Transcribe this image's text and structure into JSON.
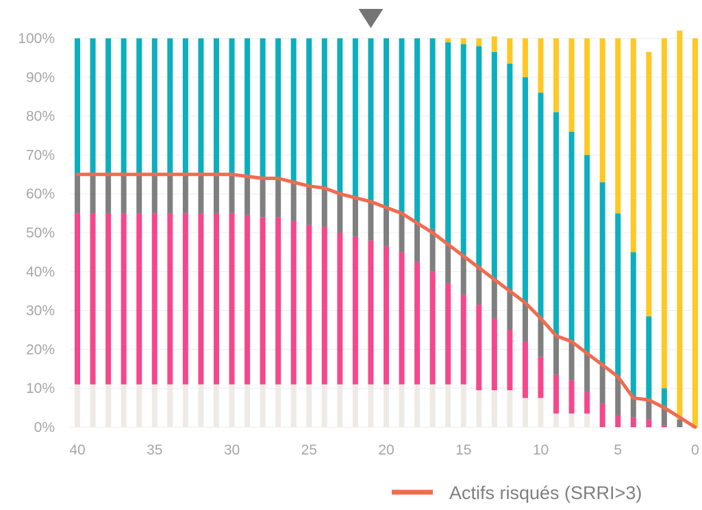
{
  "chart_data": {
    "type": "bar",
    "stacked": true,
    "x_direction": "descending",
    "x": [
      40,
      39,
      38,
      37,
      36,
      35,
      34,
      33,
      32,
      31,
      30,
      29,
      28,
      27,
      26,
      25,
      24,
      23,
      22,
      21,
      20,
      19,
      18,
      17,
      16,
      15,
      14,
      13,
      12,
      11,
      10,
      9,
      8,
      7,
      6,
      5,
      4,
      3,
      2,
      1,
      0
    ],
    "x_tick_labels": [
      "40",
      "35",
      "30",
      "25",
      "20",
      "15",
      "10",
      "5",
      "0"
    ],
    "y_tick_labels": [
      "0%",
      "10%",
      "20%",
      "30%",
      "40%",
      "50%",
      "60%",
      "70%",
      "80%",
      "90%",
      "100%"
    ],
    "ylim": [
      0,
      100
    ],
    "y_unit": "%",
    "grid": "horizontal",
    "legend_position": "bottom-right",
    "marker_above_x": 21,
    "series": [
      {
        "color": "#eeebe7",
        "values": [
          11,
          11,
          11,
          11,
          11,
          11,
          11,
          11,
          11,
          11,
          11,
          11,
          11,
          11,
          11,
          11,
          11,
          11,
          11,
          11,
          11,
          11,
          11,
          11,
          11,
          11,
          9.5,
          9.5,
          9.5,
          7.5,
          7.5,
          3.5,
          3.5,
          3.5,
          0,
          0,
          0,
          0,
          0,
          0,
          0
        ]
      },
      {
        "color": "#f5488c",
        "values": [
          44,
          44,
          44,
          44,
          44,
          44,
          44,
          44,
          44,
          44,
          44,
          43.5,
          43,
          43,
          42,
          41,
          40.5,
          39,
          38,
          37,
          35.5,
          34,
          31.5,
          29,
          26,
          23,
          22,
          18.5,
          15.5,
          14.5,
          10.5,
          10,
          8.5,
          5.5,
          6,
          3,
          2.5,
          2,
          0.5,
          0,
          0
        ]
      },
      {
        "color": "#7f7f7f",
        "values": [
          10,
          10,
          10,
          10,
          10,
          10,
          10,
          10,
          10,
          10,
          10,
          10,
          10,
          10,
          10,
          10,
          10,
          10,
          10,
          10,
          10,
          10,
          10,
          11,
          10,
          10,
          10,
          10,
          10,
          10,
          10,
          10,
          10,
          10,
          10,
          10,
          5,
          5,
          5,
          2,
          0
        ]
      },
      {
        "color": "#0bafbe",
        "values": [
          35,
          35,
          35,
          35,
          35,
          35,
          35,
          35,
          35,
          35,
          35,
          35.5,
          36,
          36,
          37,
          38,
          38.5,
          40,
          41,
          42,
          43.5,
          45,
          47.5,
          49,
          52,
          54.5,
          56.5,
          58.5,
          58.5,
          58,
          58,
          57.5,
          54,
          51,
          47,
          42,
          37.5,
          21.5,
          4.5,
          0,
          0
        ]
      },
      {
        "color": "#ffc823",
        "values": [
          0,
          0,
          0,
          0,
          0,
          0,
          0,
          0,
          0,
          0,
          0,
          0,
          0,
          0,
          0,
          0,
          0,
          0,
          0,
          0,
          0,
          0,
          0,
          0,
          1,
          1.5,
          2,
          4,
          6.5,
          10,
          14,
          19,
          24,
          30,
          37,
          45,
          55,
          68,
          90,
          100,
          100
        ]
      }
    ],
    "line": {
      "name": "Actifs risqués (SRRI>3)",
      "color": "#f26b4f",
      "values": [
        65,
        65,
        65,
        65,
        65,
        65,
        65,
        65,
        65,
        65,
        65,
        64.5,
        64,
        64,
        63,
        62,
        61.5,
        60,
        59,
        58,
        56.5,
        55,
        52.5,
        50,
        47,
        44,
        41,
        38,
        35,
        32,
        28,
        23.5,
        22,
        19,
        16,
        13,
        7.5,
        7,
        5,
        2.5,
        0
      ]
    }
  }
}
